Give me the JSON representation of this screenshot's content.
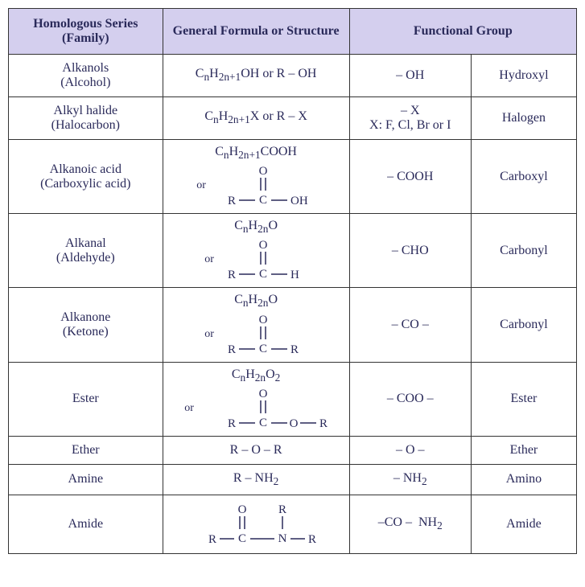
{
  "headers": {
    "family": "Homologous Series (Family)",
    "formula": "General Formula or Structure",
    "fg": "Functional Group"
  },
  "rows": [
    {
      "family": "Alkanols (Alcohol)",
      "formula_html": "C<sub>n</sub>H<sub>2n+1</sub>OH or R – OH",
      "fg_html": "– OH",
      "name": "Hydroxyl",
      "struct": null
    },
    {
      "family": "Alkyl halide (Halocarbon)",
      "formula_html": "C<sub>n</sub>H<sub>2n+1</sub>X or R – X",
      "fg_html": "– X<br>X: F, Cl, Br or I",
      "name": "Halogen",
      "struct": null
    },
    {
      "family": "Alkanoic acid (Carboxylic acid)",
      "formula_html": "C<sub>n</sub>H<sub>2n+1</sub>COOH",
      "fg_html": "– COOH",
      "name": "Carboxyl",
      "struct": "carboxyl"
    },
    {
      "family": "Alkanal (Aldehyde)",
      "formula_html": "C<sub>n</sub>H<sub>2n</sub>O",
      "fg_html": "– CHO",
      "name": "Carbonyl",
      "struct": "aldehyde"
    },
    {
      "family": "Alkanone (Ketone)",
      "formula_html": "C<sub>n</sub>H<sub>2n</sub>O",
      "fg_html": "– CO –",
      "name": "Carbonyl",
      "struct": "ketone"
    },
    {
      "family": "Ester",
      "formula_html": "C<sub>n</sub>H<sub>2n</sub>O<sub>2</sub>",
      "fg_html": "– COO –",
      "name": "Ester",
      "struct": "ester"
    },
    {
      "family": "Ether",
      "formula_html": "R – O – R",
      "fg_html": "– O –",
      "name": "Ether",
      "struct": null
    },
    {
      "family": "Amine",
      "formula_html": "R – NH<sub>2</sub>",
      "fg_html": "– NH<sub>2</sub>",
      "name": "Amino",
      "struct": null
    },
    {
      "family": "Amide",
      "formula_html": "",
      "fg_html": "–CO –&nbsp; NH<sub>2</sub>",
      "name": "Amide",
      "struct": "amide"
    }
  ],
  "colors": {
    "text": "#2a2a5a",
    "header_bg": "#d4cfee",
    "border": "#333333",
    "struct_stroke": "#2a2a5a"
  },
  "svg": {
    "stroke": "#2a2a5a",
    "stroke_width": 1.5,
    "font": "Georgia, serif",
    "font_size": 15
  },
  "or_label": "or"
}
